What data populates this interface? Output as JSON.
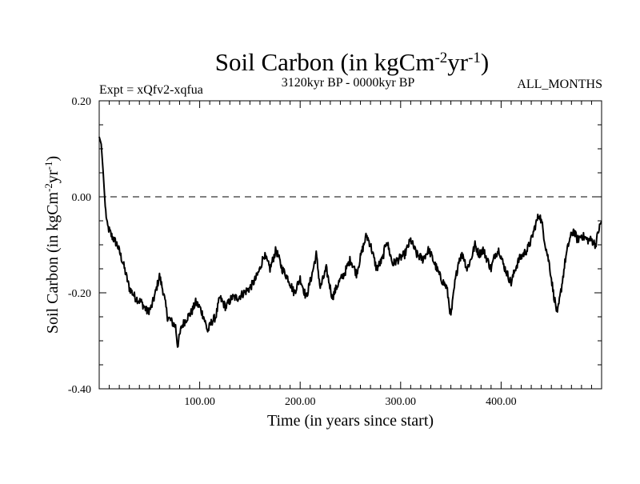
{
  "chart_data": {
    "type": "line",
    "title": "Soil Carbon (in kgCm",
    "title_sup1": "-2",
    "title_mid": "yr",
    "title_sup2": "-1",
    "title_end": ")",
    "left_subtitle": "Expt = xQfv2-xqfua",
    "center_subtitle": "3120kyr BP - 0000kyr BP",
    "right_subtitle": "ALL_MONTHS",
    "xlabel": "Time (in years since start)",
    "ylabel": "Soil Carbon (in kgCm",
    "ylabel_sup1": "-2",
    "ylabel_mid": "yr",
    "ylabel_sup2": "-1",
    "ylabel_end": ")",
    "xlim": [
      0,
      500
    ],
    "ylim": [
      -0.4,
      0.2
    ],
    "xticks": [
      100,
      200,
      300,
      400
    ],
    "xtick_labels": [
      "100.00",
      "200.00",
      "300.00",
      "400.00"
    ],
    "yticks": [
      0.2,
      0.0,
      -0.2,
      -0.4
    ],
    "ytick_labels": [
      "0.20",
      "0.00",
      "-0.20",
      "-0.40"
    ],
    "reference_line": 0.0,
    "series": [
      {
        "name": "Soil Carbon",
        "color": "#000000",
        "keypoints": [
          [
            0,
            0.125
          ],
          [
            2,
            0.11
          ],
          [
            4,
            0.05
          ],
          [
            6,
            -0.02
          ],
          [
            8,
            -0.06
          ],
          [
            12,
            -0.08
          ],
          [
            18,
            -0.1
          ],
          [
            24,
            -0.14
          ],
          [
            30,
            -0.19
          ],
          [
            36,
            -0.21
          ],
          [
            42,
            -0.22
          ],
          [
            48,
            -0.24
          ],
          [
            52,
            -0.23
          ],
          [
            56,
            -0.2
          ],
          [
            60,
            -0.165
          ],
          [
            64,
            -0.2
          ],
          [
            68,
            -0.25
          ],
          [
            72,
            -0.26
          ],
          [
            76,
            -0.27
          ],
          [
            78,
            -0.31
          ],
          [
            82,
            -0.27
          ],
          [
            88,
            -0.25
          ],
          [
            92,
            -0.24
          ],
          [
            96,
            -0.22
          ],
          [
            100,
            -0.23
          ],
          [
            104,
            -0.25
          ],
          [
            108,
            -0.28
          ],
          [
            112,
            -0.26
          ],
          [
            116,
            -0.25
          ],
          [
            120,
            -0.21
          ],
          [
            126,
            -0.23
          ],
          [
            132,
            -0.21
          ],
          [
            138,
            -0.21
          ],
          [
            144,
            -0.2
          ],
          [
            150,
            -0.19
          ],
          [
            156,
            -0.17
          ],
          [
            160,
            -0.15
          ],
          [
            164,
            -0.12
          ],
          [
            170,
            -0.15
          ],
          [
            176,
            -0.11
          ],
          [
            182,
            -0.15
          ],
          [
            188,
            -0.17
          ],
          [
            194,
            -0.2
          ],
          [
            200,
            -0.17
          ],
          [
            206,
            -0.21
          ],
          [
            212,
            -0.16
          ],
          [
            216,
            -0.12
          ],
          [
            220,
            -0.19
          ],
          [
            226,
            -0.15
          ],
          [
            232,
            -0.21
          ],
          [
            238,
            -0.18
          ],
          [
            244,
            -0.16
          ],
          [
            250,
            -0.13
          ],
          [
            256,
            -0.16
          ],
          [
            262,
            -0.11
          ],
          [
            266,
            -0.08
          ],
          [
            270,
            -0.1
          ],
          [
            276,
            -0.15
          ],
          [
            282,
            -0.13
          ],
          [
            286,
            -0.09
          ],
          [
            292,
            -0.14
          ],
          [
            298,
            -0.13
          ],
          [
            304,
            -0.12
          ],
          [
            310,
            -0.09
          ],
          [
            316,
            -0.12
          ],
          [
            322,
            -0.13
          ],
          [
            328,
            -0.11
          ],
          [
            334,
            -0.14
          ],
          [
            340,
            -0.17
          ],
          [
            346,
            -0.19
          ],
          [
            350,
            -0.25
          ],
          [
            354,
            -0.18
          ],
          [
            358,
            -0.13
          ],
          [
            362,
            -0.12
          ],
          [
            366,
            -0.15
          ],
          [
            370,
            -0.13
          ],
          [
            374,
            -0.1
          ],
          [
            378,
            -0.12
          ],
          [
            382,
            -0.11
          ],
          [
            386,
            -0.13
          ],
          [
            390,
            -0.15
          ],
          [
            394,
            -0.12
          ],
          [
            398,
            -0.11
          ],
          [
            402,
            -0.14
          ],
          [
            406,
            -0.16
          ],
          [
            410,
            -0.18
          ],
          [
            414,
            -0.15
          ],
          [
            418,
            -0.13
          ],
          [
            422,
            -0.12
          ],
          [
            426,
            -0.11
          ],
          [
            430,
            -0.09
          ],
          [
            434,
            -0.06
          ],
          [
            438,
            -0.035
          ],
          [
            441,
            -0.06
          ],
          [
            444,
            -0.1
          ],
          [
            448,
            -0.14
          ],
          [
            452,
            -0.2
          ],
          [
            456,
            -0.245
          ],
          [
            460,
            -0.19
          ],
          [
            464,
            -0.13
          ],
          [
            468,
            -0.09
          ],
          [
            472,
            -0.07
          ],
          [
            476,
            -0.09
          ],
          [
            480,
            -0.08
          ],
          [
            486,
            -0.09
          ],
          [
            490,
            -0.09
          ],
          [
            494,
            -0.1
          ],
          [
            497,
            -0.07
          ],
          [
            500,
            -0.05
          ]
        ]
      }
    ]
  }
}
